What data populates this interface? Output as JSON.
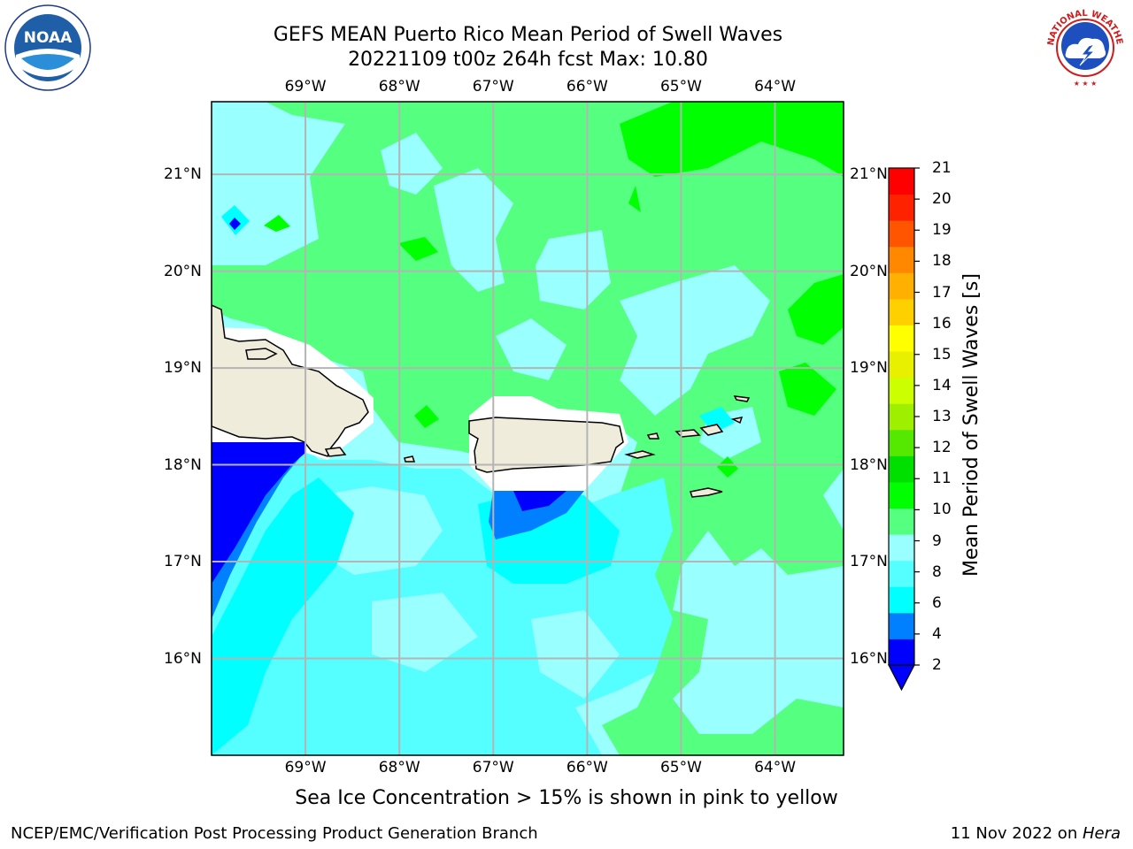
{
  "header": {
    "title_line1": "GEFS MEAN Puerto Rico Mean Period of Swell Waves",
    "title_line2": "20221109 t00z 264h fcst   Max: 10.80"
  },
  "logos": {
    "noara_text": "NOAA",
    "noaa_ring_text": "NATIONAL OCEANIC AND ATMOSPHERIC ADMINISTRATION · U.S. DEPARTMENT OF COMMERCE",
    "nws_ring_text": "NATIONAL WEATHER SERVICE"
  },
  "map": {
    "lon_labels": [
      "69°W",
      "68°W",
      "67°W",
      "66°W",
      "65°W",
      "64°W"
    ],
    "lat_labels": [
      "21°N",
      "20°N",
      "19°N",
      "18°N",
      "17°N",
      "16°N"
    ],
    "lon_values": [
      -69,
      -68,
      -67,
      -66,
      -65,
      -64
    ],
    "lat_values": [
      21,
      20,
      19,
      18,
      17,
      16
    ],
    "extent": {
      "lon_min": -70.0,
      "lon_max": -63.27,
      "lat_min": 15.0,
      "lat_max": 21.75
    },
    "colors": {
      "ocean_lightcyan": "#99ffff",
      "ocean_cyan_mid": "#55ffff",
      "ocean_cyan": "#00ffff",
      "green_light": "#55ff7f",
      "green": "#00ff00",
      "blue_mid": "#0080ff",
      "blue_dark": "#0000ff",
      "land": "#efecdc",
      "grid": "#b4b4b4"
    }
  },
  "colorbar": {
    "title": "Mean Period of Swell Waves [s]",
    "ticks": [
      "21",
      "20",
      "19",
      "18",
      "17",
      "16",
      "15",
      "14",
      "13",
      "12",
      "11",
      "10",
      "9",
      "8",
      "6",
      "4",
      "2"
    ],
    "colors": [
      "#0000ff",
      "#0080ff",
      "#00ffff",
      "#55ffff",
      "#99ffff",
      "#55ff7f",
      "#00ff00",
      "#00e000",
      "#55e800",
      "#9ff000",
      "#ccff00",
      "#e8f000",
      "#ffff00",
      "#ffd000",
      "#ffb000",
      "#ff8800",
      "#ff5500",
      "#ff2200",
      "#ff0000"
    ]
  },
  "footer": {
    "note": "Sea Ice Concentration > 15% is shown in pink to yellow",
    "credit_left": "NCEP/EMC/Verification Post Processing Product Generation Branch",
    "credit_date": "11 Nov 2022 on ",
    "credit_machine": "Hera"
  }
}
